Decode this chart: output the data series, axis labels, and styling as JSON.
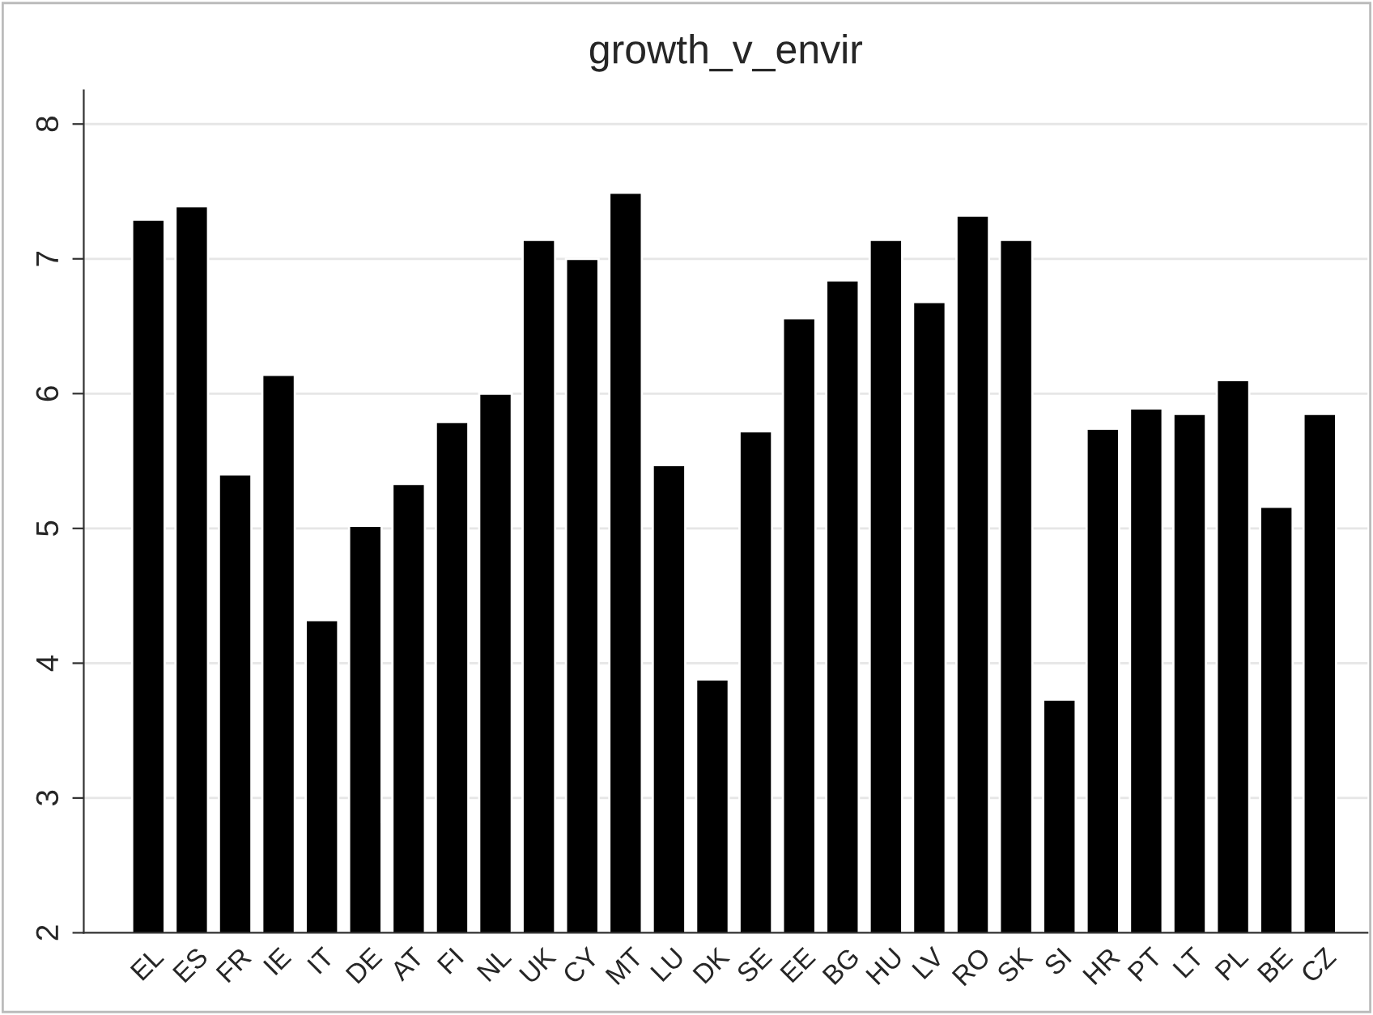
{
  "chart_data": {
    "type": "bar",
    "title": "growth_v_envir",
    "categories": [
      "EL",
      "ES",
      "FR",
      "IE",
      "IT",
      "DE",
      "AT",
      "FI",
      "NL",
      "UK",
      "CY",
      "MT",
      "LU",
      "DK",
      "SE",
      "EE",
      "BG",
      "HU",
      "LV",
      "RO",
      "SK",
      "SI",
      "HR",
      "PT",
      "LT",
      "PL",
      "BE",
      "CZ"
    ],
    "values": [
      7.29,
      7.39,
      5.4,
      6.14,
      4.32,
      5.02,
      5.33,
      5.79,
      6.0,
      7.14,
      7.0,
      7.49,
      5.47,
      3.88,
      5.72,
      6.56,
      6.84,
      7.14,
      6.68,
      7.32,
      7.14,
      3.73,
      5.74,
      5.89,
      5.85,
      6.1,
      5.16,
      5.85
    ],
    "color": "#000000",
    "ylim": [
      2,
      8.25
    ],
    "yticks": [
      2,
      3,
      4,
      5,
      6,
      7,
      8
    ],
    "grid": "y"
  }
}
